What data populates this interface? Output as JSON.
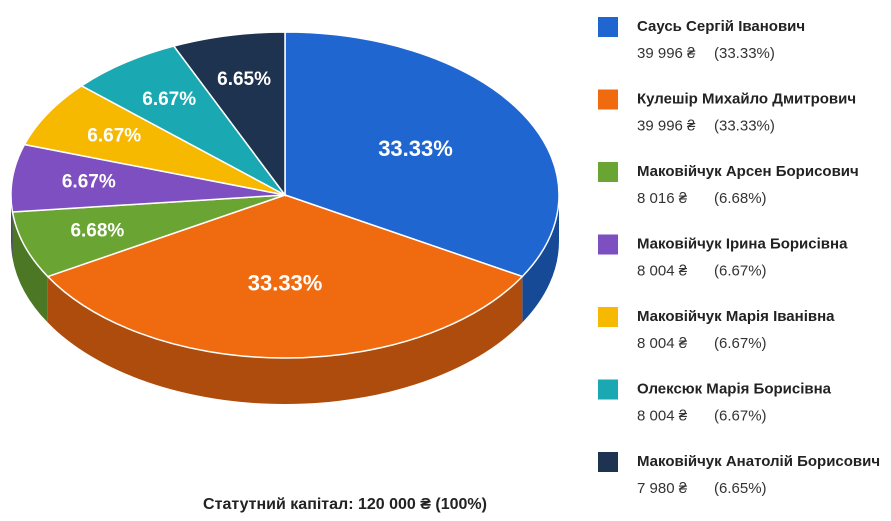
{
  "chart_data": {
    "type": "pie",
    "categories": [
      "Саусь Сергій Іванович",
      "Кулешір Михайло Дмитрович",
      "Маковійчук Арсен Борисович",
      "Маковійчук Ірина Борисівна",
      "Маковійчук Марія Іванівна",
      "Олексюк Марія Борисівна",
      "Маковійчук Анатолій Борисович"
    ],
    "values": [
      33.33,
      33.33,
      6.68,
      6.67,
      6.67,
      6.67,
      6.65
    ],
    "value_labels": [
      "33.33%",
      "33.33%",
      "6.68%",
      "6.67%",
      "6.67%",
      "6.67%",
      "6.65%"
    ],
    "legend_value_labels": [
      "(33.33%)",
      "(33.33%)",
      "(6.68%)",
      "(6.67%)",
      "(6.67%)",
      "(6.67%)",
      "(6.65%)"
    ],
    "amounts": [
      39996,
      39996,
      8016,
      8004,
      8004,
      8004,
      7980
    ],
    "amount_labels": [
      "39 996 ₴",
      "39 996 ₴",
      "8 016 ₴",
      "8 004 ₴",
      "8 004 ₴",
      "8 004 ₴",
      "7 980 ₴"
    ],
    "colors": [
      "#1f66d1",
      "#f06a10",
      "#6aa534",
      "#7e4fc1",
      "#f7b900",
      "#1aa9b2",
      "#1e3350"
    ],
    "legend": "right",
    "footer": "Статутний капітал: 120 000 ₴ (100%)"
  }
}
